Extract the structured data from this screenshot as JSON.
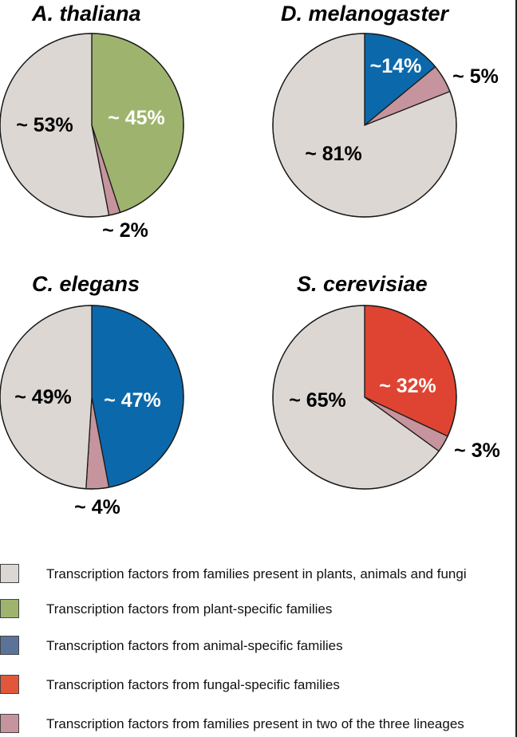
{
  "chart_data": [
    {
      "type": "pie",
      "title": "A. thaliana",
      "slices": [
        {
          "key": "specific",
          "value": 45,
          "label": "~ 45%",
          "color": "#9eb46e"
        },
        {
          "key": "two",
          "value": 2,
          "label": "~ 2%",
          "color": "#c5949c"
        },
        {
          "key": "common",
          "value": 53,
          "label": "~ 53%",
          "color": "#dcd7d3"
        }
      ]
    },
    {
      "type": "pie",
      "title": "D. melanogaster",
      "slices": [
        {
          "key": "specific",
          "value": 14,
          "label": "~14%",
          "color": "#0b69ab"
        },
        {
          "key": "two",
          "value": 5,
          "label": "~ 5%",
          "color": "#c5949c"
        },
        {
          "key": "common",
          "value": 81,
          "label": "~ 81%",
          "color": "#dcd7d3"
        }
      ]
    },
    {
      "type": "pie",
      "title": "C. elegans",
      "slices": [
        {
          "key": "specific",
          "value": 47,
          "label": "~ 47%",
          "color": "#0b69ab"
        },
        {
          "key": "two",
          "value": 4,
          "label": "~ 4%",
          "color": "#c5949c"
        },
        {
          "key": "common",
          "value": 49,
          "label": "~ 49%",
          "color": "#dcd7d3"
        }
      ]
    },
    {
      "type": "pie",
      "title": "S. cerevisiae",
      "slices": [
        {
          "key": "specific",
          "value": 32,
          "label": "~ 32%",
          "color": "#df4432"
        },
        {
          "key": "two",
          "value": 3,
          "label": "~ 3%",
          "color": "#c5949c"
        },
        {
          "key": "common",
          "value": 65,
          "label": "~ 65%",
          "color": "#dcd7d3"
        }
      ]
    }
  ],
  "legend": [
    {
      "color": "#dcd7d3",
      "text": "Transcription factors from families present in plants, animals and fungi"
    },
    {
      "color": "#9eb46e",
      "text": "Transcription factors from plant-specific families"
    },
    {
      "color": "#5c7399",
      "text": "Transcription factors from animal-specific families"
    },
    {
      "color": "#e2573a",
      "text": "Transcription factors from fungal-specific families"
    },
    {
      "color": "#c5949c",
      "text": "Transcription factors from families present in two of the three lineages"
    }
  ]
}
